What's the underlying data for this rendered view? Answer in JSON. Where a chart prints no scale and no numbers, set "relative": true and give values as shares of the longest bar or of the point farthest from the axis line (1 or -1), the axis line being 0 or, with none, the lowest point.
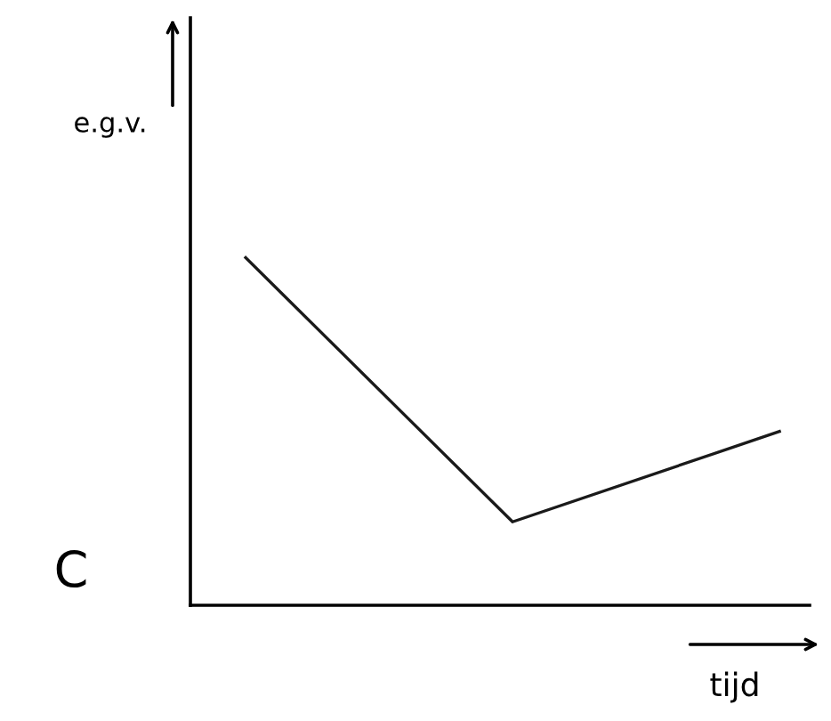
{
  "chart_data": {
    "type": "line",
    "relative": true,
    "xlabel": "tijd",
    "ylabel": "e.g.v.",
    "annotations": [
      "C"
    ],
    "categories": [
      null,
      null,
      null
    ],
    "series": [
      {
        "color": "#1a1a1a",
        "values": [
          1,
          0.24,
          0.5
        ]
      }
    ],
    "grid": false,
    "legend": false,
    "marker": "none",
    "line_style": "solid"
  }
}
